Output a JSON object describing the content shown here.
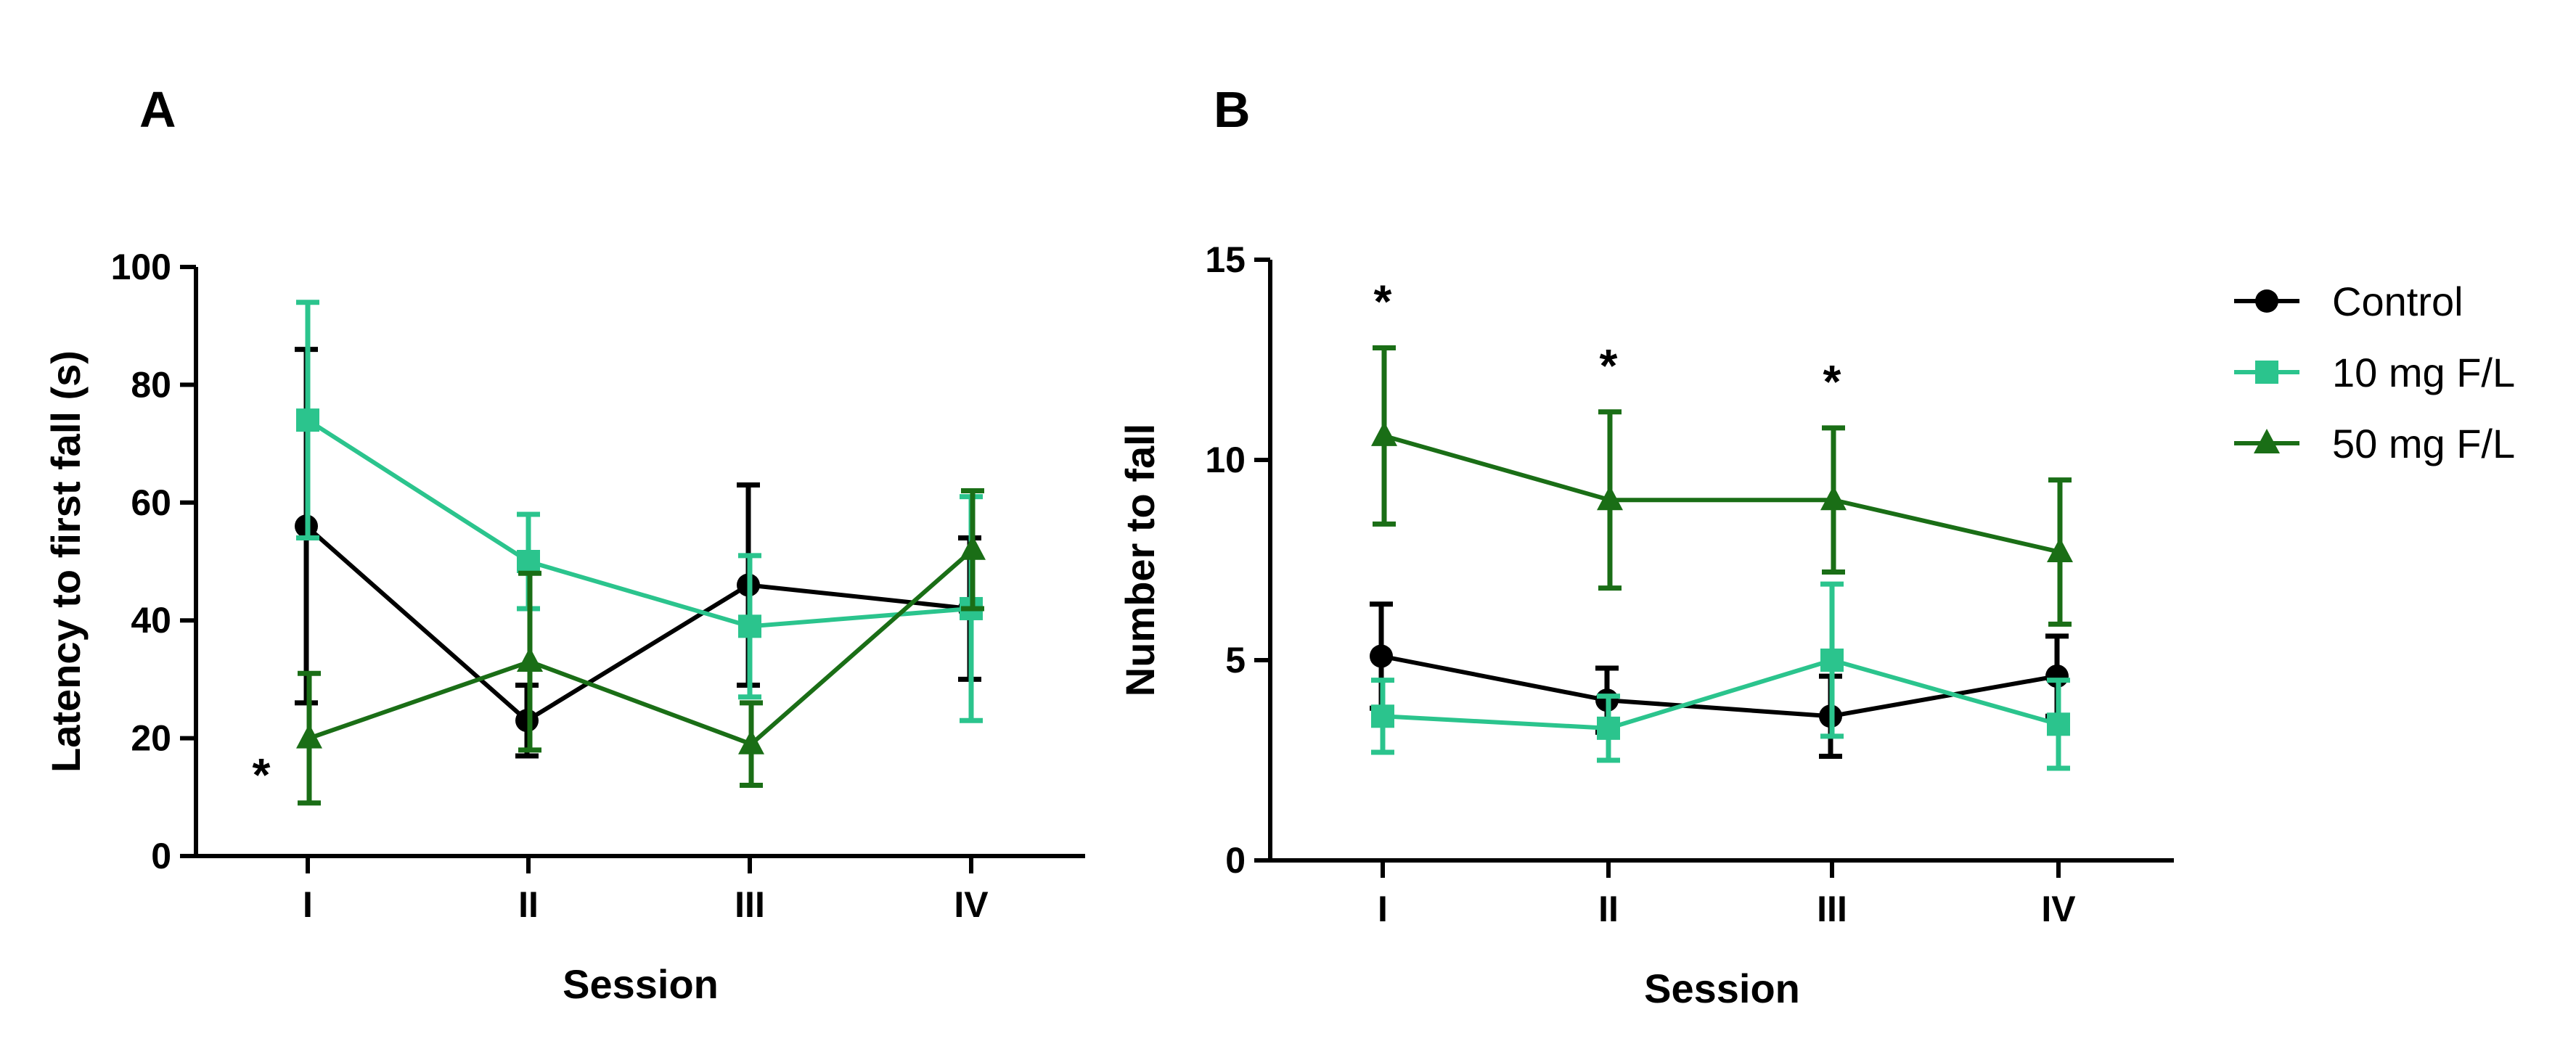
{
  "colors": {
    "control": "#000000",
    "f10": "#2bc48d",
    "f50": "#1a6e16",
    "axis": "#000000"
  },
  "legend": {
    "entries": [
      {
        "label": "Control",
        "marker": "circle",
        "color": "#000000"
      },
      {
        "label": "10 mg F/L",
        "marker": "square",
        "color": "#2bc48d"
      },
      {
        "label": "50 mg F/L",
        "marker": "triangle",
        "color": "#1a6e16"
      }
    ]
  },
  "chart_data": [
    {
      "panel": "A",
      "type": "line",
      "categories": [
        "I",
        "II",
        "III",
        "IV"
      ],
      "xlabel": "Session",
      "ylabel": "Latency to first fall (s)",
      "ylim": [
        0,
        100
      ],
      "yticks": [
        0,
        20,
        40,
        60,
        80,
        100
      ],
      "series": [
        {
          "name": "Control",
          "marker": "circle",
          "color": "#000000",
          "values": [
            56,
            23,
            46,
            42
          ],
          "errors": [
            30,
            6,
            17,
            12
          ]
        },
        {
          "name": "10 mg F/L",
          "marker": "square",
          "color": "#2bc48d",
          "values": [
            74,
            50,
            39,
            42
          ],
          "errors": [
            20,
            8,
            12,
            19
          ]
        },
        {
          "name": "50 mg F/L",
          "marker": "triangle",
          "color": "#1a6e16",
          "values": [
            20,
            33,
            19,
            52
          ],
          "errors": [
            11,
            15,
            7,
            10
          ]
        }
      ],
      "annotations": [
        {
          "text": "*",
          "category": "I",
          "position": "left"
        }
      ]
    },
    {
      "panel": "B",
      "type": "line",
      "categories": [
        "I",
        "II",
        "III",
        "IV"
      ],
      "xlabel": "Session",
      "ylabel": "Number to fall",
      "ylim": [
        0,
        15
      ],
      "yticks": [
        0,
        5,
        10,
        15
      ],
      "series": [
        {
          "name": "Control",
          "marker": "circle",
          "color": "#000000",
          "values": [
            5.1,
            4.0,
            3.6,
            4.6
          ],
          "errors": [
            1.3,
            0.8,
            1.0,
            1.0
          ]
        },
        {
          "name": "10 mg F/L",
          "marker": "square",
          "color": "#2bc48d",
          "values": [
            3.6,
            3.3,
            5.0,
            3.4
          ],
          "errors": [
            0.9,
            0.8,
            1.9,
            1.1
          ]
        },
        {
          "name": "50 mg F/L",
          "marker": "triangle",
          "color": "#1a6e16",
          "values": [
            10.6,
            9.0,
            9.0,
            7.7
          ],
          "errors": [
            2.2,
            2.2,
            1.8,
            1.8
          ]
        }
      ],
      "annotations": [
        {
          "text": "*",
          "category": "I",
          "position": "above"
        },
        {
          "text": "*",
          "category": "II",
          "position": "above"
        },
        {
          "text": "*",
          "category": "III",
          "position": "above"
        }
      ]
    }
  ]
}
